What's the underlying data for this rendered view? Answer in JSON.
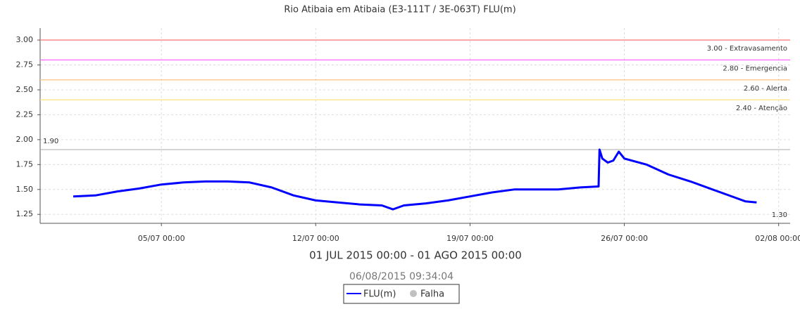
{
  "chart_data": {
    "type": "line",
    "title": "Rio Atibaia em Atibaia (E3-111T / 3E-063T) FLU(m)",
    "subtitle": "01 JUL 2015 00:00 - 01 AGO 2015 00:00",
    "timestamp": "06/08/2015 09:34:04",
    "x": [
      "2015-07-01T00:00",
      "2015-07-02T00:00",
      "2015-07-03T00:00",
      "2015-07-04T00:00",
      "2015-07-05T00:00",
      "2015-07-06T00:00",
      "2015-07-07T00:00",
      "2015-07-08T00:00",
      "2015-07-09T00:00",
      "2015-07-10T00:00",
      "2015-07-11T00:00",
      "2015-07-12T00:00",
      "2015-07-13T00:00",
      "2015-07-14T00:00",
      "2015-07-15T00:00",
      "2015-07-15T12:00",
      "2015-07-16T00:00",
      "2015-07-17T00:00",
      "2015-07-18T00:00",
      "2015-07-19T00:00",
      "2015-07-20T00:00",
      "2015-07-21T00:00",
      "2015-07-22T00:00",
      "2015-07-23T00:00",
      "2015-07-24T00:00",
      "2015-07-24T20:00",
      "2015-07-24T21:00",
      "2015-07-25T00:00",
      "2015-07-25T06:00",
      "2015-07-25T12:00",
      "2015-07-25T18:00",
      "2015-07-26T00:00",
      "2015-07-27T00:00",
      "2015-07-28T00:00",
      "2015-07-29T00:00",
      "2015-07-30T00:00",
      "2015-07-31T00:00",
      "2015-07-31T12:00",
      "2015-08-01T00:00"
    ],
    "series": [
      {
        "name": "FLU(m)",
        "color": "#0000ff",
        "values": [
          1.43,
          1.44,
          1.48,
          1.51,
          1.55,
          1.57,
          1.58,
          1.58,
          1.57,
          1.52,
          1.44,
          1.39,
          1.37,
          1.35,
          1.34,
          1.3,
          1.34,
          1.36,
          1.39,
          1.43,
          1.47,
          1.5,
          1.5,
          1.5,
          1.52,
          1.53,
          1.9,
          1.81,
          1.77,
          1.79,
          1.88,
          1.81,
          1.75,
          1.65,
          1.58,
          1.5,
          1.42,
          1.38,
          1.37
        ]
      }
    ],
    "legend_extra": {
      "name": "Falha",
      "color": "#c0c0c0"
    },
    "xlim": [
      "2015-06-29T12:00",
      "2015-08-02T12:30"
    ],
    "xticks": [
      {
        "value": "2015-07-05T00:00",
        "label": "05/07 00:00"
      },
      {
        "value": "2015-07-12T00:00",
        "label": "12/07 00:00"
      },
      {
        "value": "2015-07-19T00:00",
        "label": "19/07 00:00"
      },
      {
        "value": "2015-07-26T00:00",
        "label": "26/07 00:00"
      },
      {
        "value": "2015-08-02T00:00",
        "label": "02/08 00:00"
      }
    ],
    "ylim": [
      1.16,
      3.12
    ],
    "yticks": [
      1.25,
      {
        "value": 1.5,
        "label": "1.50"
      },
      1.75,
      {
        "value": 2,
        "label": "2.00"
      },
      2.25,
      {
        "value": 2.5,
        "label": "2.50"
      },
      2.75,
      {
        "value": 3,
        "label": "3.00"
      }
    ],
    "thresholds": [
      {
        "value": 3,
        "label": "3.00 - Extravasamento",
        "color": "#ff7070"
      },
      {
        "value": 2.8,
        "label": "2.80 - Emergencia",
        "color": "#ff66ff"
      },
      {
        "value": 2.6,
        "label": "2.60 - Alerta",
        "color": "#ffc080"
      },
      {
        "value": 2.4,
        "label": "2.40 - Atenção",
        "color": "#ffe080"
      }
    ],
    "max_marker": {
      "value": 1.9,
      "label": "1.90"
    },
    "min_marker": {
      "value": 1.3,
      "label": "1.30"
    },
    "grid": true
  }
}
